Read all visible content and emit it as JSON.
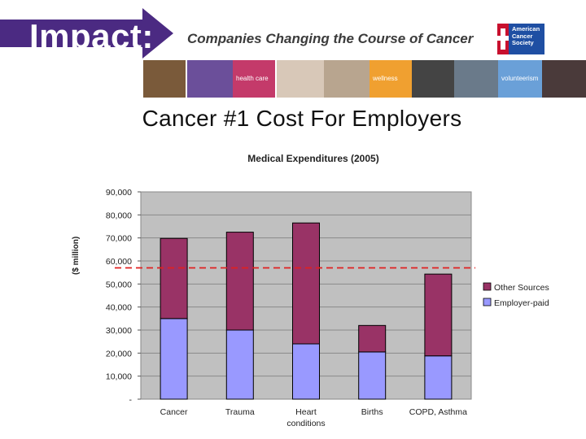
{
  "header": {
    "brand": "Impact:",
    "tagline": "Companies Changing the Course of Cancer",
    "logo_text": [
      "American",
      "Cancer",
      "Society"
    ],
    "tiles": [
      {
        "label": "",
        "color": "#7a5a3a"
      },
      {
        "label": "",
        "color": "#6b4f9a"
      },
      {
        "label": "health care",
        "color": "#c43a6a"
      },
      {
        "label": "",
        "color": "#d8c8b8"
      },
      {
        "label": "",
        "color": "#b8a58f"
      },
      {
        "label": "wellness",
        "color": "#f0a030"
      },
      {
        "label": "",
        "color": "#444444"
      },
      {
        "label": "",
        "color": "#6a7a8a"
      },
      {
        "label": "volunteerism",
        "color": "#6aa0d8"
      },
      {
        "label": "",
        "color": "#4a3a3a"
      }
    ]
  },
  "slide_title": "Cancer #1 Cost For Employers",
  "chart_data": {
    "type": "bar",
    "stacked": true,
    "title": "Medical Expenditures (2005)",
    "ylabel": "($ million)",
    "xlabel": "",
    "categories": [
      "Cancer",
      "Trauma",
      "Heart conditions",
      "Births",
      "COPD, Asthma"
    ],
    "category_lines": [
      [
        "Cancer"
      ],
      [
        "Trauma"
      ],
      [
        "Heart",
        "conditions"
      ],
      [
        "Births"
      ],
      [
        "COPD, Asthma"
      ]
    ],
    "series": [
      {
        "name": "Employer-paid",
        "color": "#9999ff",
        "values": [
          35000,
          30000,
          24000,
          20500,
          18800
        ]
      },
      {
        "name": "Other Sources",
        "color": "#993366",
        "values": [
          34800,
          42500,
          52500,
          11500,
          35500
        ]
      }
    ],
    "ylim": [
      0,
      90000
    ],
    "yticks": [
      0,
      10000,
      20000,
      30000,
      40000,
      50000,
      60000,
      70000,
      80000,
      90000
    ],
    "ytick_labels": [
      "-",
      "10,000",
      "20,000",
      "30,000",
      "40,000",
      "50,000",
      "60,000",
      "70,000",
      "80,000",
      "90,000"
    ],
    "legend_order": [
      "Other Sources",
      "Employer-paid"
    ],
    "legend_position": "right",
    "grid": true,
    "reference_line": {
      "y": 57000,
      "color": "#e02020",
      "style": "dashed"
    },
    "plot_background": "#c0c0c0"
  }
}
